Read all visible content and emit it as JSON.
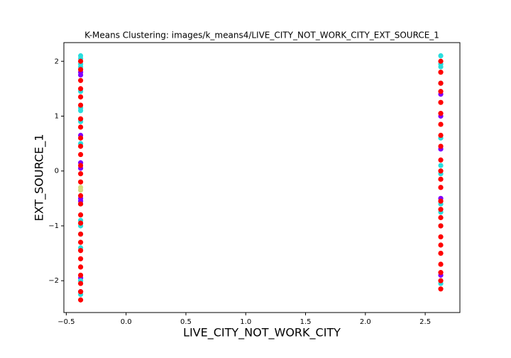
{
  "chart_data": {
    "type": "scatter",
    "title": "K-Means Clustering: images/k_means4/LIVE_CITY_NOT_WORK_CITY_EXT_SOURCE_1",
    "x_label": "LIVE_CITY_NOT_WORK_CITY",
    "y_label": "EXT_SOURCE_1",
    "xlim": [
      -0.52,
      2.79
    ],
    "ylim": [
      -2.58,
      2.34
    ],
    "xticks": [
      {
        "value": -0.5,
        "label": "−0.5"
      },
      {
        "value": 0,
        "label": "0.0"
      },
      0.5,
      {
        "value": 1,
        "label": "1.0"
      },
      1.5,
      {
        "value": 2,
        "label": "2.0"
      },
      2.5
    ],
    "yticks": [
      {
        "value": -2,
        "label": "−2"
      },
      {
        "value": -1,
        "label": "−1"
      },
      0,
      1,
      2
    ],
    "series": [
      {
        "color": "#8000ff",
        "x": [
          -0.38,
          -0.38,
          -0.38,
          -0.38,
          -0.38,
          -0.38,
          -0.38,
          -0.38,
          -0.38,
          2.63,
          2.63,
          2.63,
          2.63,
          2.63
        ],
        "values": [
          -2.2,
          -1.95,
          -0.55,
          -0.5,
          0.05,
          0.15,
          0.65,
          1.75,
          1.8,
          -1.9,
          -0.5,
          0.4,
          1.0,
          1.4
        ]
      },
      {
        "color": "#2adddd",
        "x": [
          -0.38,
          -0.38,
          -0.38,
          -0.38,
          -0.38,
          -0.38,
          -0.38,
          -0.38,
          -0.38,
          -0.38,
          -0.38,
          -0.38,
          -0.38,
          -0.38,
          -0.38,
          -0.38,
          2.63,
          2.63,
          2.63,
          2.63,
          2.63,
          2.63,
          2.63,
          2.63,
          2.63,
          2.63,
          2.63
        ],
        "values": [
          -2.25,
          -2.0,
          -1.4,
          -1.15,
          -1.0,
          -0.9,
          -0.6,
          0.5,
          0.9,
          1.1,
          1.15,
          1.45,
          1.9,
          1.95,
          2.05,
          2.1,
          -2.05,
          -1.0,
          -0.75,
          -0.6,
          -0.05,
          0.1,
          0.6,
          1.6,
          1.9,
          1.95,
          2.1
        ]
      },
      {
        "color": "#d4dd80",
        "x": [
          -0.38,
          -0.38
        ],
        "values": [
          -0.3,
          -0.35
        ]
      },
      {
        "color": "#ff0000",
        "x": [
          -0.38,
          -0.38,
          -0.38,
          -0.38,
          -0.38,
          -0.38,
          -0.38,
          -0.38,
          -0.38,
          -0.38,
          -0.38,
          -0.38,
          -0.38,
          -0.38,
          -0.38,
          -0.38,
          -0.38,
          -0.38,
          -0.38,
          -0.38,
          -0.38,
          -0.38,
          -0.38,
          -0.38,
          -0.38,
          -0.38,
          -0.38,
          2.63,
          2.63,
          2.63,
          2.63,
          2.63,
          2.63,
          2.63,
          2.63,
          2.63,
          2.63,
          2.63,
          2.63,
          2.63,
          2.63,
          2.63,
          2.63,
          2.63,
          2.63,
          2.63,
          2.63,
          2.63,
          2.63,
          2.63,
          2.63
        ],
        "values": [
          -2.35,
          -2.2,
          -2.05,
          -1.9,
          -1.75,
          -1.6,
          -1.45,
          -1.3,
          -1.15,
          -0.95,
          -0.8,
          -0.6,
          -0.45,
          -0.2,
          -0.05,
          0.1,
          0.3,
          0.45,
          0.6,
          0.8,
          0.95,
          1.2,
          1.35,
          1.5,
          1.65,
          1.85,
          2.0,
          -2.15,
          -2.0,
          -1.85,
          -1.7,
          -1.5,
          -1.35,
          -1.2,
          -1.0,
          -0.85,
          -0.7,
          -0.55,
          -0.3,
          -0.15,
          0.0,
          0.2,
          0.45,
          0.65,
          0.85,
          1.05,
          1.25,
          1.45,
          1.6,
          1.8,
          2.0
        ]
      }
    ]
  }
}
